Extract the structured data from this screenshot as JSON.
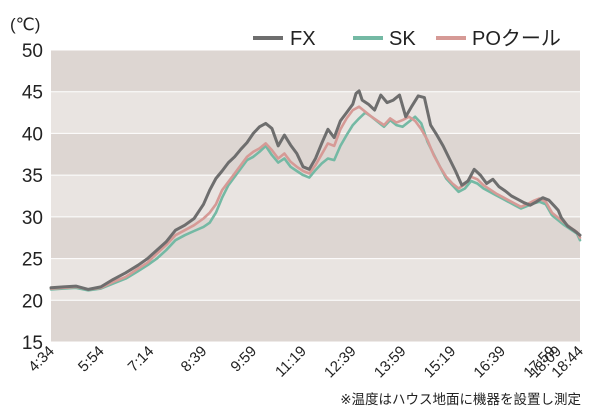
{
  "chart_data": {
    "type": "line",
    "unit_label": "(℃)",
    "note": "※温度はハウス地面に機器を設置し測定",
    "ylim": [
      15,
      50
    ],
    "yticks": [
      15,
      20,
      25,
      30,
      35,
      40,
      45,
      50
    ],
    "xlim": [
      0,
      850
    ],
    "x_tick_labels": [
      "4:34",
      "5:54",
      "7:14",
      "8:39",
      "9:59",
      "11:19",
      "12:39",
      "13:59",
      "15:19",
      "16:39",
      "17:59",
      "18:09",
      "18:44"
    ],
    "x_tick_positions": [
      0,
      80,
      160,
      245,
      325,
      405,
      485,
      565,
      645,
      725,
      805,
      815,
      850
    ],
    "legend_position": "top-right",
    "background": "alternating horizontal bands",
    "series": [
      {
        "name": "FX",
        "color": "#6e6e6e",
        "x": [
          0,
          20,
          40,
          60,
          80,
          100,
          120,
          140,
          155,
          170,
          185,
          200,
          215,
          230,
          245,
          255,
          265,
          275,
          285,
          295,
          305,
          315,
          325,
          335,
          345,
          355,
          365,
          375,
          385,
          395,
          405,
          415,
          425,
          435,
          445,
          455,
          465,
          475,
          485,
          490,
          495,
          500,
          510,
          520,
          530,
          540,
          550,
          560,
          570,
          580,
          590,
          600,
          610,
          620,
          630,
          640,
          650,
          660,
          670,
          680,
          690,
          700,
          710,
          720,
          730,
          740,
          750,
          760,
          770,
          780,
          790,
          800,
          810,
          815,
          820,
          830,
          840,
          850
        ],
        "y": [
          21.5,
          21.6,
          21.7,
          21.3,
          21.6,
          22.5,
          23.3,
          24.2,
          25.0,
          26.0,
          27.0,
          28.4,
          29.0,
          29.8,
          31.5,
          33.2,
          34.6,
          35.5,
          36.5,
          37.2,
          38.1,
          38.9,
          40.0,
          40.8,
          41.2,
          40.6,
          38.5,
          39.8,
          38.6,
          37.6,
          36.0,
          35.7,
          37.0,
          38.8,
          40.5,
          39.5,
          41.5,
          42.5,
          43.5,
          44.8,
          45.1,
          44.0,
          43.5,
          42.8,
          44.6,
          43.7,
          44.0,
          44.6,
          42.0,
          43.3,
          44.5,
          44.3,
          41.0,
          39.8,
          38.5,
          37.0,
          35.5,
          33.8,
          34.3,
          35.7,
          35.0,
          34.0,
          34.5,
          33.6,
          33.1,
          32.5,
          32.1,
          31.7,
          31.4,
          31.8,
          32.3,
          32.0,
          31.2,
          30.8,
          29.9,
          28.9,
          28.4,
          27.8
        ]
      },
      {
        "name": "SK",
        "color": "#74b9a4",
        "x": [
          0,
          20,
          40,
          60,
          80,
          100,
          120,
          140,
          155,
          170,
          185,
          200,
          215,
          230,
          245,
          255,
          265,
          275,
          285,
          295,
          305,
          315,
          325,
          335,
          345,
          355,
          365,
          375,
          385,
          395,
          405,
          415,
          425,
          435,
          445,
          455,
          465,
          475,
          485,
          495,
          505,
          515,
          525,
          535,
          545,
          555,
          565,
          575,
          585,
          595,
          605,
          615,
          625,
          635,
          645,
          655,
          665,
          675,
          685,
          695,
          705,
          715,
          725,
          735,
          745,
          755,
          765,
          775,
          785,
          795,
          805,
          815,
          825,
          835,
          845,
          850
        ],
        "y": [
          21.3,
          21.4,
          21.5,
          21.2,
          21.4,
          22.0,
          22.6,
          23.5,
          24.2,
          25.0,
          26.0,
          27.2,
          27.8,
          28.3,
          28.8,
          29.3,
          30.5,
          32.3,
          33.8,
          34.8,
          35.8,
          36.8,
          37.2,
          37.8,
          38.5,
          37.4,
          36.5,
          37.0,
          36.0,
          35.5,
          35.0,
          34.7,
          35.6,
          36.4,
          37.0,
          36.8,
          38.5,
          39.8,
          41.0,
          41.8,
          42.5,
          42.0,
          41.4,
          40.8,
          41.6,
          41.0,
          40.8,
          41.4,
          42.0,
          41.2,
          39.0,
          37.5,
          36.0,
          34.6,
          33.8,
          33.0,
          33.4,
          34.3,
          34.0,
          33.4,
          33.0,
          32.6,
          32.2,
          31.8,
          31.4,
          31.0,
          31.3,
          31.6,
          31.8,
          31.5,
          30.2,
          29.6,
          29.0,
          28.5,
          28.0,
          27.2
        ]
      },
      {
        "name": "POクール",
        "color": "#d69a96",
        "x": [
          0,
          20,
          40,
          60,
          80,
          100,
          120,
          140,
          155,
          170,
          185,
          200,
          215,
          230,
          245,
          255,
          265,
          275,
          285,
          295,
          305,
          315,
          325,
          335,
          345,
          355,
          365,
          375,
          385,
          395,
          405,
          415,
          425,
          435,
          445,
          455,
          465,
          475,
          485,
          495,
          505,
          515,
          525,
          535,
          545,
          555,
          565,
          575,
          585,
          595,
          605,
          615,
          625,
          635,
          645,
          655,
          665,
          675,
          685,
          695,
          705,
          715,
          725,
          735,
          745,
          755,
          765,
          775,
          785,
          795,
          805,
          815,
          825,
          835,
          845,
          850
        ],
        "y": [
          21.4,
          21.5,
          21.6,
          21.3,
          21.5,
          22.2,
          22.8,
          23.8,
          24.5,
          25.6,
          26.6,
          27.8,
          28.4,
          29.0,
          29.8,
          30.5,
          31.5,
          33.2,
          34.2,
          35.2,
          36.2,
          37.2,
          37.8,
          38.2,
          38.8,
          38.0,
          37.0,
          37.6,
          36.6,
          36.0,
          35.5,
          35.2,
          36.2,
          37.5,
          38.8,
          38.5,
          40.5,
          41.8,
          42.8,
          43.2,
          42.6,
          42.0,
          41.5,
          41.0,
          41.8,
          41.3,
          41.6,
          42.0,
          41.5,
          40.5,
          39.2,
          37.4,
          36.0,
          34.8,
          34.0,
          33.4,
          33.9,
          34.8,
          34.5,
          33.8,
          33.3,
          32.8,
          32.4,
          32.0,
          31.6,
          31.2,
          31.5,
          31.9,
          32.2,
          31.8,
          30.5,
          29.9,
          29.3,
          28.7,
          28.2,
          27.5
        ]
      }
    ]
  }
}
